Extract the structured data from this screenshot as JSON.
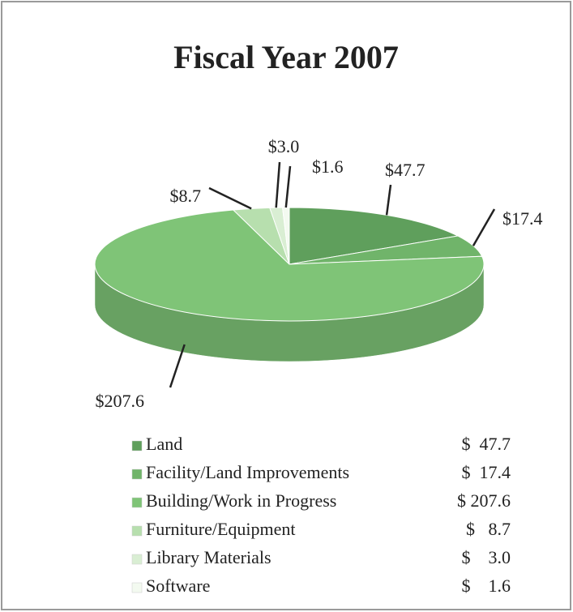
{
  "chart_data": {
    "type": "pie",
    "title": "Fiscal Year  2007",
    "categories": [
      "Land",
      "Facility/Land Improvements",
      "Building/Work in Progress",
      "Furniture/Equipment",
      "Library Materials",
      "Software"
    ],
    "values": [
      47.7,
      17.4,
      207.6,
      8.7,
      3.0,
      1.6
    ],
    "value_labels": [
      "$47.7",
      "$17.4",
      "$207.6",
      "$8.7",
      "$3.0",
      "$1.6"
    ],
    "legend_value_labels": [
      "$  47.7",
      "$  17.4",
      "$ 207.6",
      "$   8.7",
      "$    3.0",
      "$    1.6"
    ],
    "colors": [
      "#5f9f5c",
      "#70b46a",
      "#7fc477",
      "#b7dfae",
      "#d9eed3",
      "#f3faf0"
    ],
    "legend": "bottom"
  }
}
